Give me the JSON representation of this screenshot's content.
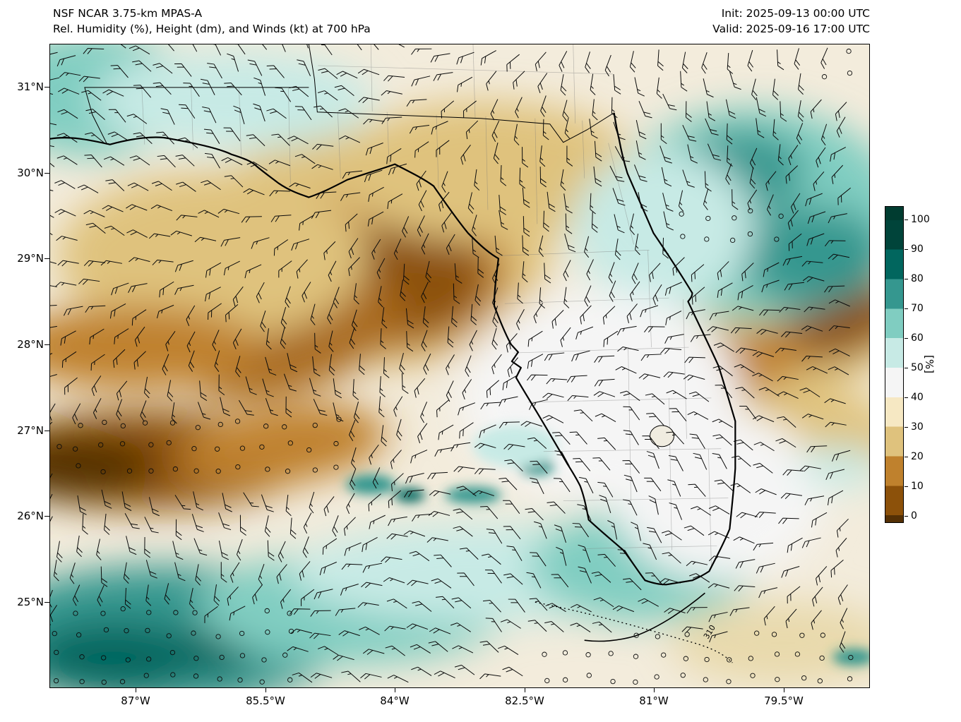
{
  "header": {
    "title_line1": "NSF NCAR 3.75-km MPAS-A",
    "title_line2": "Rel. Humidity (%), Height (dm), and Winds (kt) at 700 hPa",
    "init_label": "Init: 2025-09-13 00:00 UTC",
    "valid_label": "Valid: 2025-09-16 17:00 UTC"
  },
  "map": {
    "y_ticks": [
      "31°N",
      "30°N",
      "29°N",
      "28°N",
      "27°N",
      "26°N",
      "25°N"
    ],
    "x_ticks": [
      "87°W",
      "85.5°W",
      "84°W",
      "82.5°W",
      "81°W",
      "79.5°W"
    ],
    "contour_label": "310"
  },
  "colorbar": {
    "label": "[%]",
    "ticks": [
      "100",
      "90",
      "80",
      "70",
      "60",
      "50",
      "40",
      "30",
      "20",
      "10",
      "0"
    ],
    "stops": [
      "#003c30",
      "#00443a",
      "#01665e",
      "#35978f",
      "#80cdc1",
      "#c7eae5",
      "#f5f5f5",
      "#f6e8c3",
      "#dfc27d",
      "#bf812d",
      "#8c510a",
      "#543005"
    ]
  },
  "chart_data": {
    "type": "heatmap",
    "title": "Rel. Humidity (%), Height (dm), and Winds (kt) at 700 hPa",
    "model": "NSF NCAR 3.75-km MPAS-A",
    "init": "2025-09-13 00:00 UTC",
    "valid": "2025-09-16 17:00 UTC",
    "x_axis": {
      "tick_labels": [
        "87°W",
        "85.5°W",
        "84°W",
        "82.5°W",
        "81°W",
        "79.5°W"
      ],
      "range_deg_west": [
        88.0,
        78.5
      ]
    },
    "y_axis": {
      "tick_labels": [
        "31°N",
        "30°N",
        "29°N",
        "28°N",
        "27°N",
        "26°N",
        "25°N"
      ],
      "range_deg_north": [
        24.0,
        31.5
      ]
    },
    "colorbar": {
      "label": "[%]",
      "min": 0,
      "max": 100,
      "tick_step": 10,
      "colormap": "diverging brown-white-teal (BrBG), discrete 10% bands with dark extensions"
    },
    "field_features": [
      {
        "region": "western Gulf of Mexico near 27°N at left edge",
        "rh_pct": "0-20",
        "type": "very dry brown band with calm wind circles"
      },
      {
        "region": "north-central Florida / Big Bend and panhandle interior",
        "rh_pct": "10-30",
        "type": "large dry brown area"
      },
      {
        "region": "Alabama-Georgia border strip",
        "rh_pct": "30-45",
        "type": "tan dry"
      },
      {
        "region": "top-left corner near 31°N 87.5°W",
        "rh_pct": "60-75",
        "type": "moist teal patch"
      },
      {
        "region": "Atlantic off NE Florida 29-31°N",
        "rh_pct": "60-85",
        "type": "moist teal region with calm circles"
      },
      {
        "region": "dry streak entering from east edge near 28.5°N toward central east coast",
        "rh_pct": "15-35",
        "type": "dry brown streak"
      },
      {
        "region": "southern Gulf of Mexico below 25.5°N",
        "rh_pct": "70-95",
        "type": "strong moist teal with dark cores and calm circles"
      },
      {
        "region": "South Florida and Keys 25-26°N",
        "rh_pct": "55-75",
        "type": "moist light teal band"
      },
      {
        "region": "central peninsula",
        "rh_pct": "40-55",
        "type": "near-neutral pale"
      },
      {
        "region": "bottom-right Atlantic",
        "rh_pct": "35-50",
        "type": "pale tan with calm circles"
      }
    ],
    "wind": {
      "units": "kt",
      "symbol": "barbs",
      "typical_speed": "10-20 kt",
      "calm_regions": "open circles over western Gulf dry band, southern Gulf, NE Atlantic patch and bottom-right Atlantic"
    },
    "height_contours": {
      "units": "dm",
      "labeled_value": "310",
      "style": "dotted black line near the Florida Keys"
    }
  }
}
